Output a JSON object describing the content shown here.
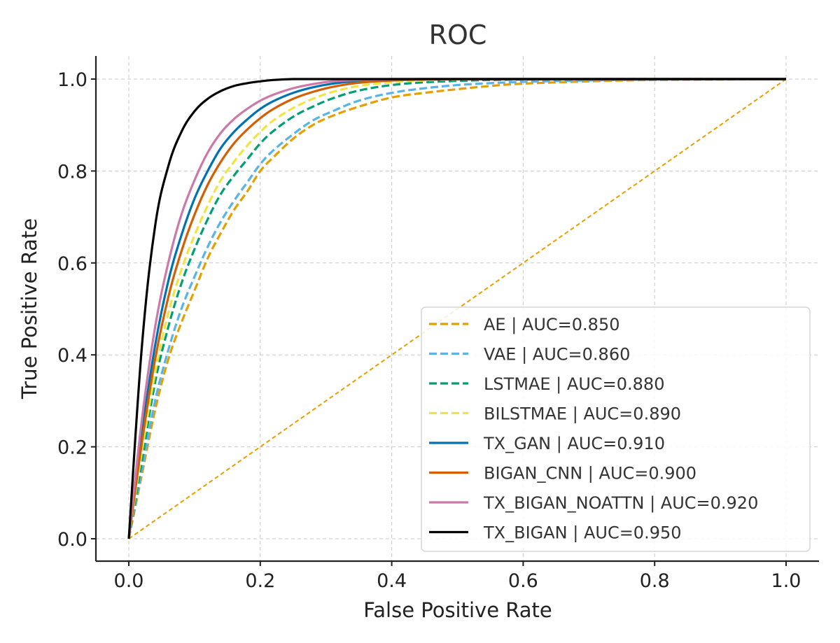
{
  "chart_data": {
    "type": "line",
    "title": "ROC",
    "xlabel": "False Positive Rate",
    "ylabel": "True Positive Rate",
    "xlim": [
      -0.05,
      1.05
    ],
    "ylim": [
      -0.05,
      1.05
    ],
    "x_ticks": [
      0.0,
      0.2,
      0.4,
      0.6,
      0.8,
      1.0
    ],
    "y_ticks": [
      0.0,
      0.2,
      0.4,
      0.6,
      0.8,
      1.0
    ],
    "x_tick_labels": [
      "0.0",
      "0.2",
      "0.4",
      "0.6",
      "0.8",
      "1.0"
    ],
    "y_tick_labels": [
      "0.0",
      "0.2",
      "0.4",
      "0.6",
      "0.8",
      "1.0"
    ],
    "grid": true,
    "legend_position": "lower-right",
    "diagonal": {
      "x": [
        0,
        1
      ],
      "y": [
        0,
        1
      ],
      "color": "#E69F00",
      "style": "dashed"
    },
    "x": [
      0.0,
      0.02,
      0.04,
      0.06,
      0.08,
      0.1,
      0.12,
      0.14,
      0.16,
      0.18,
      0.2,
      0.22,
      0.25,
      0.28,
      0.31,
      0.35,
      0.4,
      0.45,
      0.5,
      0.55,
      0.6,
      0.7,
      0.8,
      0.9,
      1.0
    ],
    "series": [
      {
        "name": "AE",
        "label": "AE | AUC=0.850",
        "auc": 0.85,
        "color": "#E69F00",
        "style": "dashed",
        "y": [
          0.0,
          0.14,
          0.28,
          0.39,
          0.47,
          0.54,
          0.61,
          0.665,
          0.715,
          0.755,
          0.8,
          0.83,
          0.87,
          0.9,
          0.92,
          0.94,
          0.96,
          0.97,
          0.978,
          0.985,
          0.99,
          0.995,
          0.998,
          0.999,
          1.0
        ]
      },
      {
        "name": "VAE",
        "label": "VAE | AUC=0.860",
        "auc": 0.86,
        "color": "#56B4E9",
        "style": "dashed",
        "y": [
          0.0,
          0.15,
          0.3,
          0.41,
          0.5,
          0.57,
          0.635,
          0.69,
          0.735,
          0.775,
          0.815,
          0.845,
          0.88,
          0.91,
          0.93,
          0.953,
          0.97,
          0.98,
          0.987,
          0.991,
          0.994,
          0.997,
          0.999,
          1.0,
          1.0
        ]
      },
      {
        "name": "LSTMAE",
        "label": "LSTMAE | AUC=0.880",
        "auc": 0.88,
        "color": "#009E73",
        "style": "dashed",
        "y": [
          0.0,
          0.17,
          0.34,
          0.46,
          0.555,
          0.63,
          0.695,
          0.75,
          0.79,
          0.825,
          0.86,
          0.887,
          0.918,
          0.94,
          0.958,
          0.975,
          0.987,
          0.993,
          0.996,
          0.998,
          0.999,
          1.0,
          1.0,
          1.0,
          1.0
        ]
      },
      {
        "name": "BILSTMAE",
        "label": "BILSTMAE | AUC=0.890",
        "auc": 0.89,
        "color": "#F0E442",
        "style": "dashed",
        "y": [
          0.0,
          0.19,
          0.36,
          0.49,
          0.585,
          0.66,
          0.725,
          0.78,
          0.82,
          0.855,
          0.885,
          0.91,
          0.937,
          0.957,
          0.972,
          0.985,
          0.993,
          0.997,
          0.999,
          1.0,
          1.0,
          1.0,
          1.0,
          1.0,
          1.0
        ]
      },
      {
        "name": "TX_GAN",
        "label": "TX_GAN | AUC=0.910",
        "auc": 0.91,
        "color": "#0072B2",
        "style": "solid",
        "y": [
          0.0,
          0.23,
          0.42,
          0.56,
          0.66,
          0.74,
          0.8,
          0.85,
          0.885,
          0.912,
          0.935,
          0.952,
          0.97,
          0.982,
          0.99,
          0.996,
          0.999,
          1.0,
          1.0,
          1.0,
          1.0,
          1.0,
          1.0,
          1.0,
          1.0
        ]
      },
      {
        "name": "BIGAN_CNN",
        "label": "BIGAN_CNN | AUC=0.900",
        "auc": 0.9,
        "color": "#D55E00",
        "style": "solid",
        "y": [
          0.0,
          0.21,
          0.39,
          0.525,
          0.625,
          0.705,
          0.77,
          0.82,
          0.86,
          0.89,
          0.915,
          0.935,
          0.957,
          0.972,
          0.983,
          0.992,
          0.997,
          0.999,
          1.0,
          1.0,
          1.0,
          1.0,
          1.0,
          1.0,
          1.0
        ]
      },
      {
        "name": "TX_BIGAN_NOATTN",
        "label": "TX_BIGAN_NOATTN | AUC=0.920",
        "auc": 0.92,
        "color": "#CC79A7",
        "style": "solid",
        "y": [
          0.0,
          0.26,
          0.46,
          0.6,
          0.705,
          0.78,
          0.84,
          0.883,
          0.913,
          0.935,
          0.953,
          0.966,
          0.98,
          0.989,
          0.995,
          0.998,
          1.0,
          1.0,
          1.0,
          1.0,
          1.0,
          1.0,
          1.0,
          1.0,
          1.0
        ]
      },
      {
        "name": "TX_BIGAN",
        "label": "TX_BIGAN | AUC=0.950",
        "auc": 0.95,
        "color": "#000000",
        "style": "solid",
        "y": [
          0.0,
          0.42,
          0.68,
          0.81,
          0.885,
          0.93,
          0.957,
          0.974,
          0.985,
          0.991,
          0.995,
          0.998,
          1.0,
          1.0,
          1.0,
          1.0,
          1.0,
          1.0,
          1.0,
          1.0,
          1.0,
          1.0,
          1.0,
          1.0,
          1.0
        ]
      }
    ]
  }
}
